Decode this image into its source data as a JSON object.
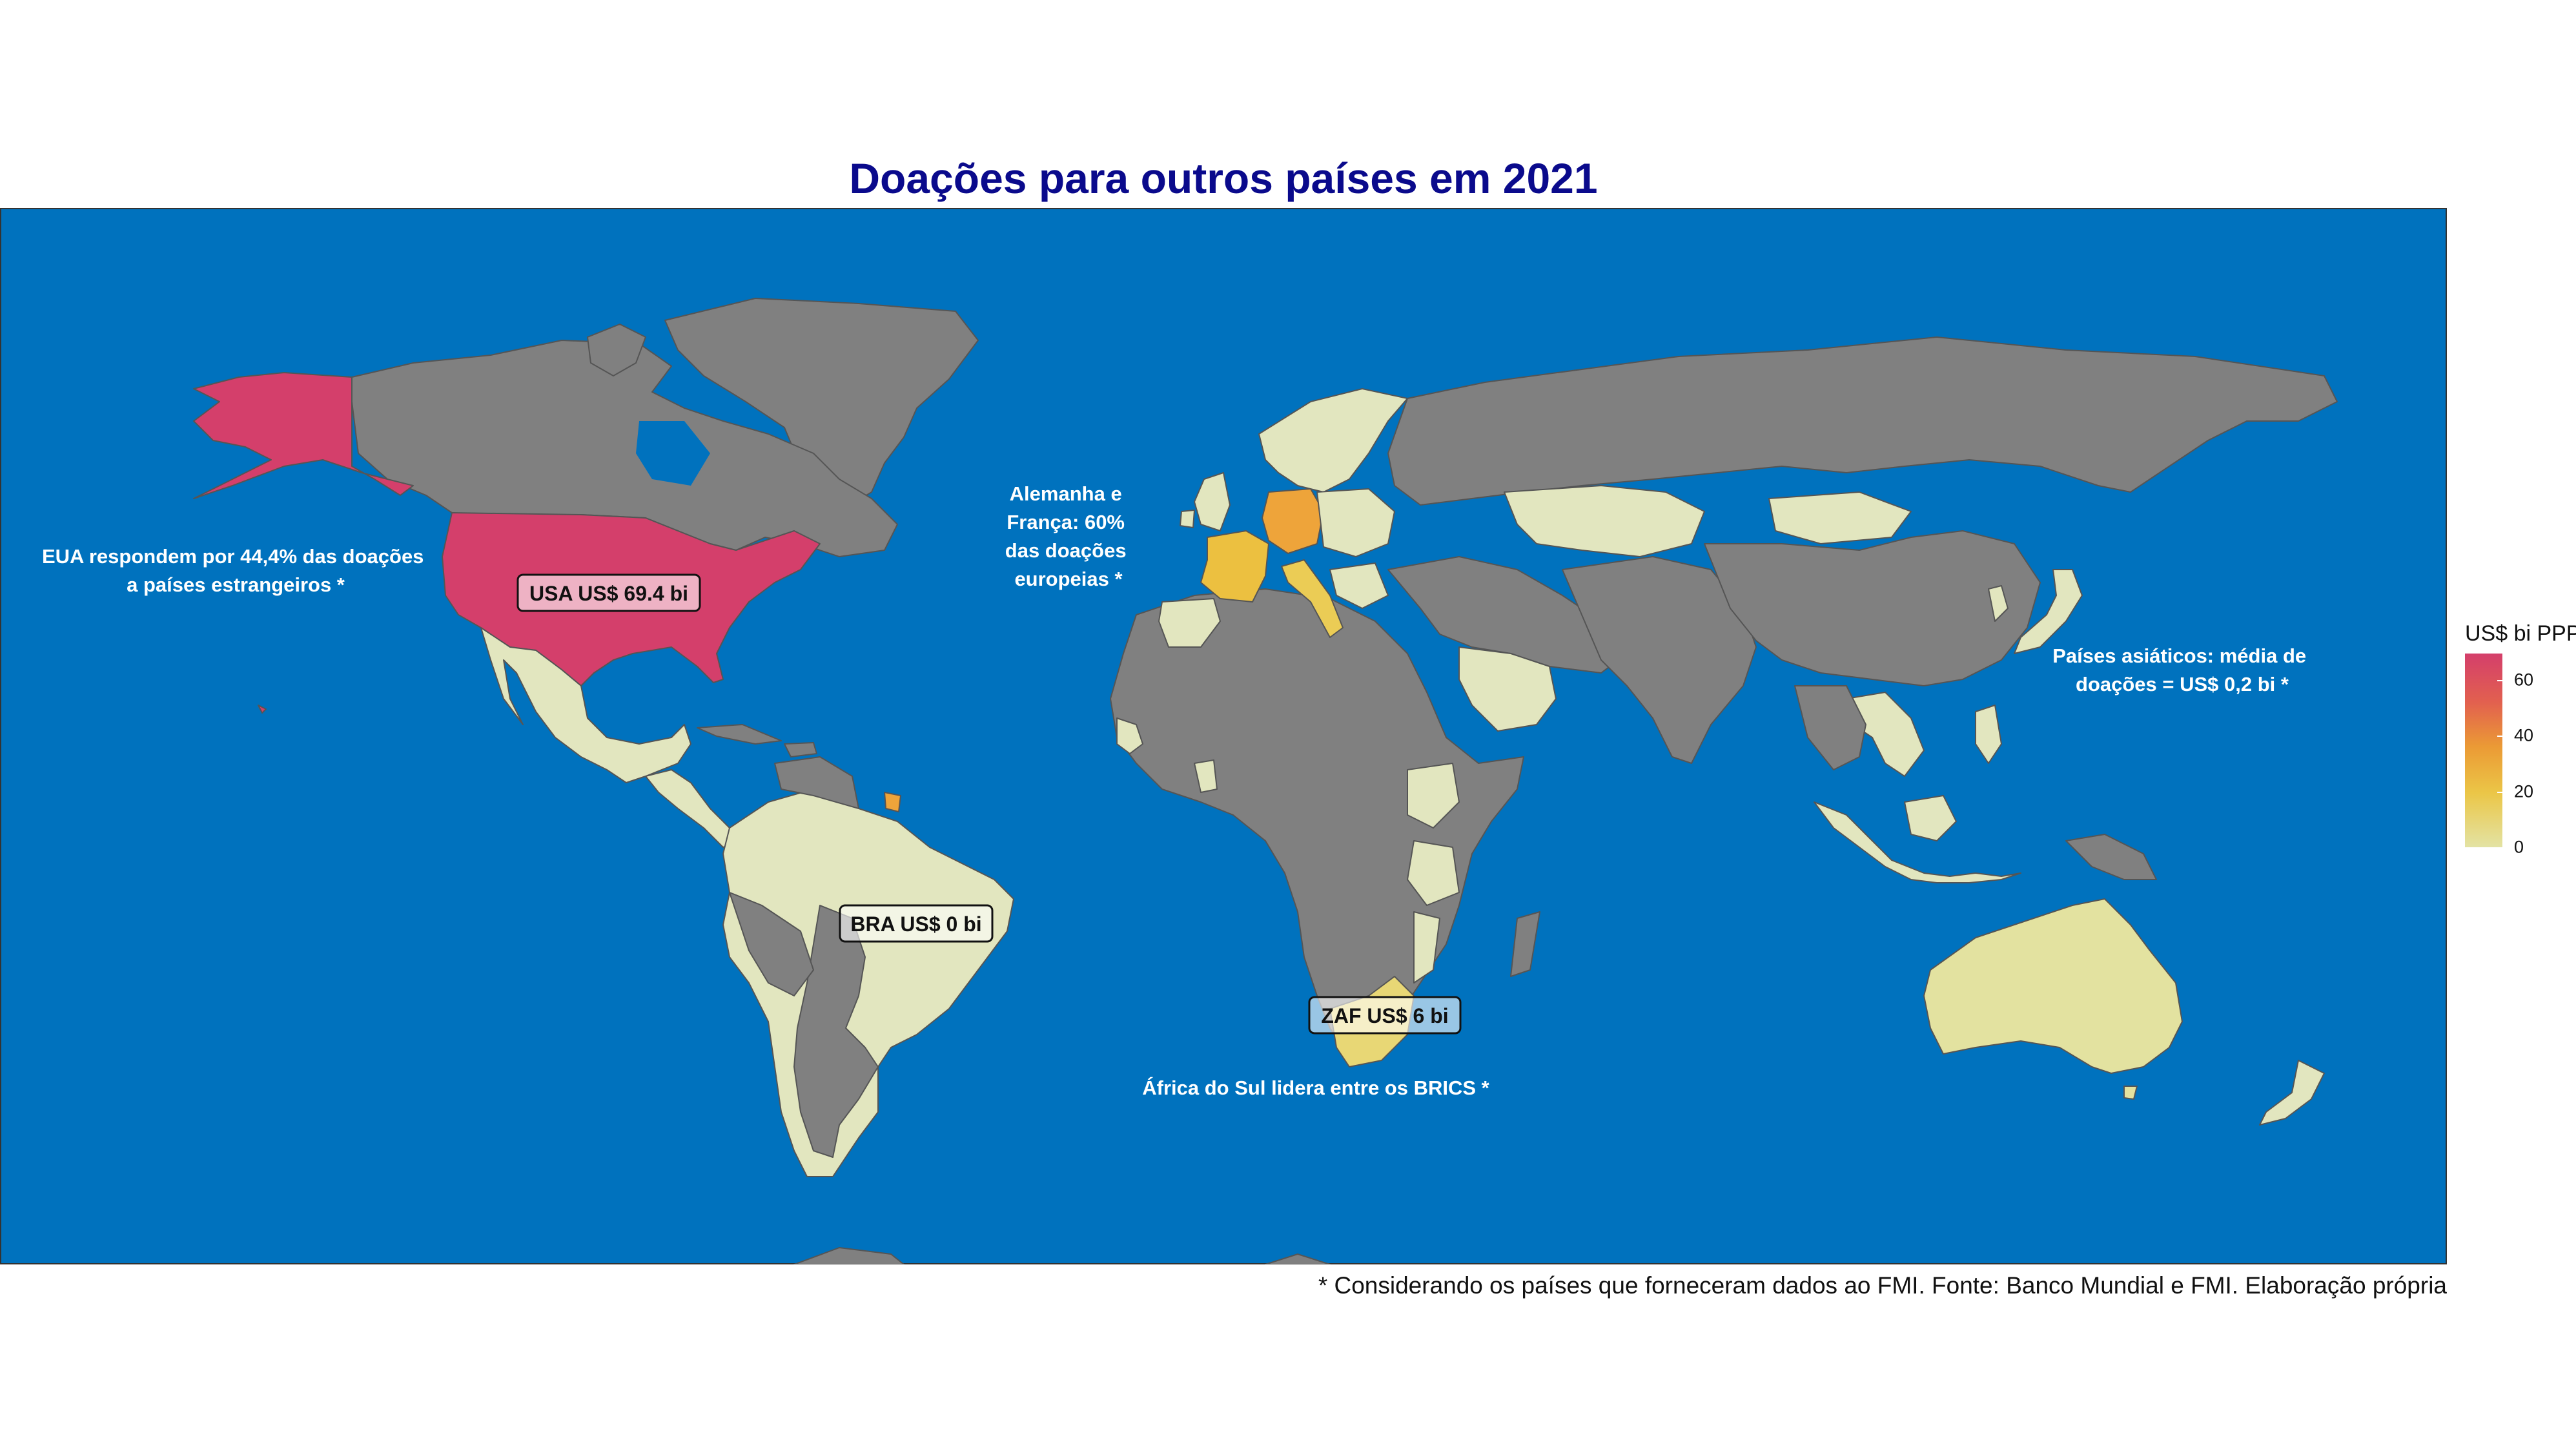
{
  "title": "Doações para outros países em 2021",
  "footer": "* Considerando os países que forneceram dados ao FMI. Fonte: Banco Mundial e FMI. Elaboração própria",
  "colors": {
    "ocean": "#0072be",
    "no_data": "#808080",
    "usa": "#d43f6b",
    "germany": "#eea43a",
    "france": "#ecc040",
    "italy": "#ebcc55",
    "south_africa": "#e8d775",
    "low": "#e2e6bf",
    "australia": "#e3e2a0"
  },
  "legend": {
    "title": "US$ bi PPP",
    "ticks": [
      "60",
      "40",
      "20",
      "0"
    ],
    "tick_values": [
      60,
      40,
      20,
      0
    ],
    "max": 69.4
  },
  "labels": {
    "usa": "USA US$ 69.4 bi",
    "bra": "BRA US$ 0 bi",
    "zaf": "ZAF US$ 6 bi"
  },
  "annotations": {
    "usa": [
      "EUA respondem por 44,4% das doações",
      "a países estrangeiros *"
    ],
    "europe": [
      "Alemanha e",
      "França: 60%",
      "das doações",
      "europeias *"
    ],
    "asia": [
      "Países asiáticos: média de",
      "doações = US$ 0,2 bi *"
    ],
    "africa": [
      "África do Sul lidera entre os BRICS *"
    ]
  }
}
